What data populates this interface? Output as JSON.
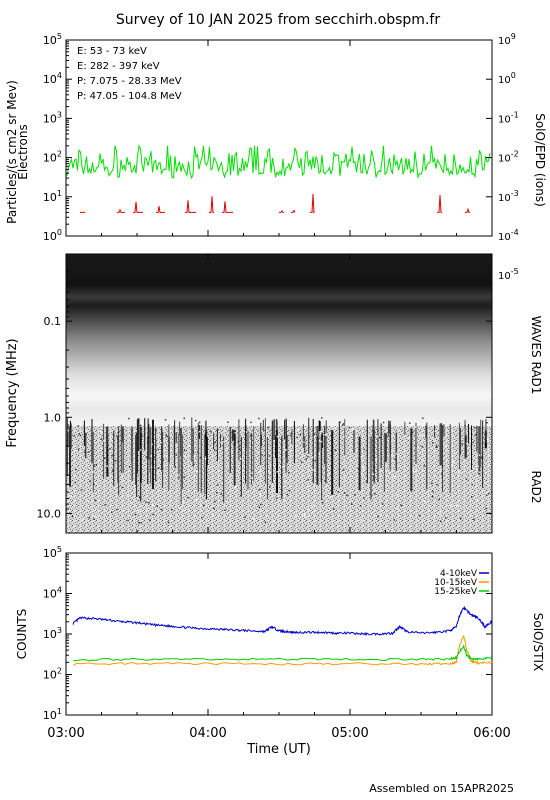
{
  "title": "Survey of 10 JAN 2025 from secchirh.obspm.fr",
  "footer": "Assembled on 15APR2025",
  "chart_data": [
    {
      "type": "line",
      "panel": "epd",
      "ylabel": "Particles/(s cm2 sr Mev)",
      "ylabel2": "Electrons",
      "right_label": "SolO/EPD (ions)",
      "scale": "log",
      "ylim": [
        1,
        100000
      ],
      "ylim_right": [
        1e-05,
        1000000000
      ],
      "yticks": [
        "10^0",
        "10^1",
        "10^2",
        "10^3",
        "10^4",
        "10^5"
      ],
      "yticks_right": [
        "10^-5",
        "10^-4",
        "10^-3",
        "10^-2",
        "10^-1",
        "10^0"
      ],
      "yticks_right_top": "10^9",
      "grid": false,
      "legend_position": "top-left",
      "series": [
        {
          "name": "E: 53 - 73 keV",
          "color": "#00e000",
          "level": 60,
          "min": 30,
          "max": 200
        },
        {
          "name": "E: 282 - 397 keV",
          "color": "#e00000",
          "level": 4,
          "sparse": true,
          "max": 12
        },
        {
          "name": "P: 7.075 - 28.33 MeV",
          "color": "#000000"
        },
        {
          "name": "P: 47.05 - 104.8 MeV",
          "color": "#0000cc"
        }
      ]
    },
    {
      "type": "heatmap",
      "panel": "waves",
      "ylabel": "Frequency (MHz)",
      "right_labels": [
        "WAVES RAD1",
        "RAD2"
      ],
      "yticks": [
        "0.1",
        "1.0",
        "10.0"
      ],
      "scale": "log",
      "ylim": [
        0.02,
        16
      ],
      "inverted": true,
      "split_frequency_mhz": 1.0
    },
    {
      "type": "line",
      "panel": "stix",
      "ylabel": "COUNTS",
      "right_label": "SolO/STIX",
      "scale": "log",
      "ylim": [
        10,
        100000
      ],
      "yticks": [
        "10^1",
        "10^2",
        "10^3",
        "10^4",
        "10^5"
      ],
      "legend_position": "top-right",
      "xlabel": "Time (UT)",
      "xticks": [
        "03:00",
        "04:00",
        "05:00",
        "06:00"
      ],
      "xlim_hours": [
        3,
        6
      ],
      "series": [
        {
          "name": "4-10keV",
          "color": "#0000cc",
          "x": [
            3.05,
            3.1,
            3.2,
            3.3,
            3.4,
            3.5,
            3.6,
            3.7,
            3.8,
            3.9,
            4.0,
            4.1,
            4.2,
            4.3,
            4.4,
            4.45,
            4.5,
            4.55,
            4.6,
            4.7,
            4.8,
            4.9,
            5.0,
            5.1,
            5.2,
            5.3,
            5.35,
            5.4,
            5.5,
            5.6,
            5.7,
            5.75,
            5.8,
            5.85,
            5.9,
            5.95,
            6.0
          ],
          "y": [
            1800,
            2500,
            2400,
            2200,
            2000,
            1900,
            1700,
            1600,
            1500,
            1400,
            1350,
            1300,
            1250,
            1200,
            1150,
            1500,
            1200,
            1150,
            1100,
            1100,
            1100,
            1050,
            1050,
            1000,
            1000,
            1050,
            1500,
            1150,
            1050,
            1100,
            1200,
            1500,
            4500,
            3000,
            2500,
            1500,
            2000
          ]
        },
        {
          "name": "10-15keV",
          "color": "#ff9900",
          "x": [
            3.05,
            3.5,
            4.0,
            4.5,
            5.0,
            5.5,
            5.7,
            5.75,
            5.8,
            5.82,
            5.85,
            5.9,
            6.0
          ],
          "y": [
            180,
            190,
            185,
            180,
            185,
            180,
            185,
            200,
            900,
            400,
            220,
            190,
            200
          ]
        },
        {
          "name": "15-25keV",
          "color": "#00cc00",
          "x": [
            3.05,
            3.5,
            4.0,
            4.5,
            5.0,
            5.5,
            5.7,
            5.75,
            5.8,
            5.82,
            5.85,
            5.9,
            6.0
          ],
          "y": [
            230,
            240,
            235,
            240,
            235,
            235,
            240,
            260,
            500,
            300,
            250,
            240,
            260
          ]
        }
      ]
    }
  ]
}
